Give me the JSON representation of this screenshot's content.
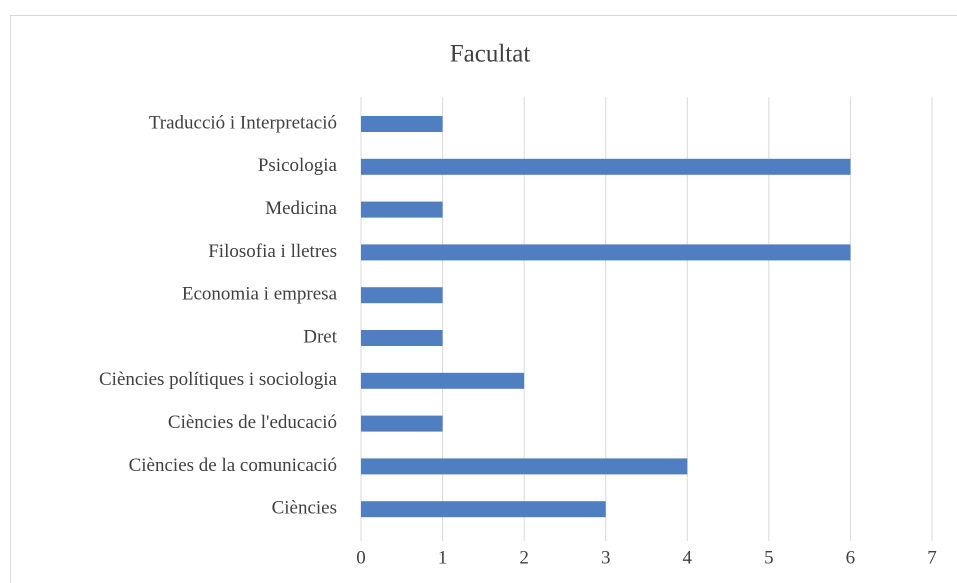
{
  "chart_data": {
    "type": "bar",
    "orientation": "horizontal",
    "title": "Facultat",
    "categories": [
      "Traducció i Interpretació",
      "Psicologia",
      "Medicina",
      "Filosofia i lletres",
      "Economia i empresa",
      "Dret",
      "Ciències polítiques i sociologia",
      "Ciències de l'educació",
      "Ciències de la comunicació",
      "Ciències"
    ],
    "values": [
      1,
      6,
      1,
      6,
      1,
      1,
      2,
      1,
      4,
      3
    ],
    "color": "#4f7ec1",
    "xlim": [
      0,
      7
    ],
    "xticks": [
      0,
      1,
      2,
      3,
      4,
      5,
      6,
      7
    ],
    "grid": true
  }
}
